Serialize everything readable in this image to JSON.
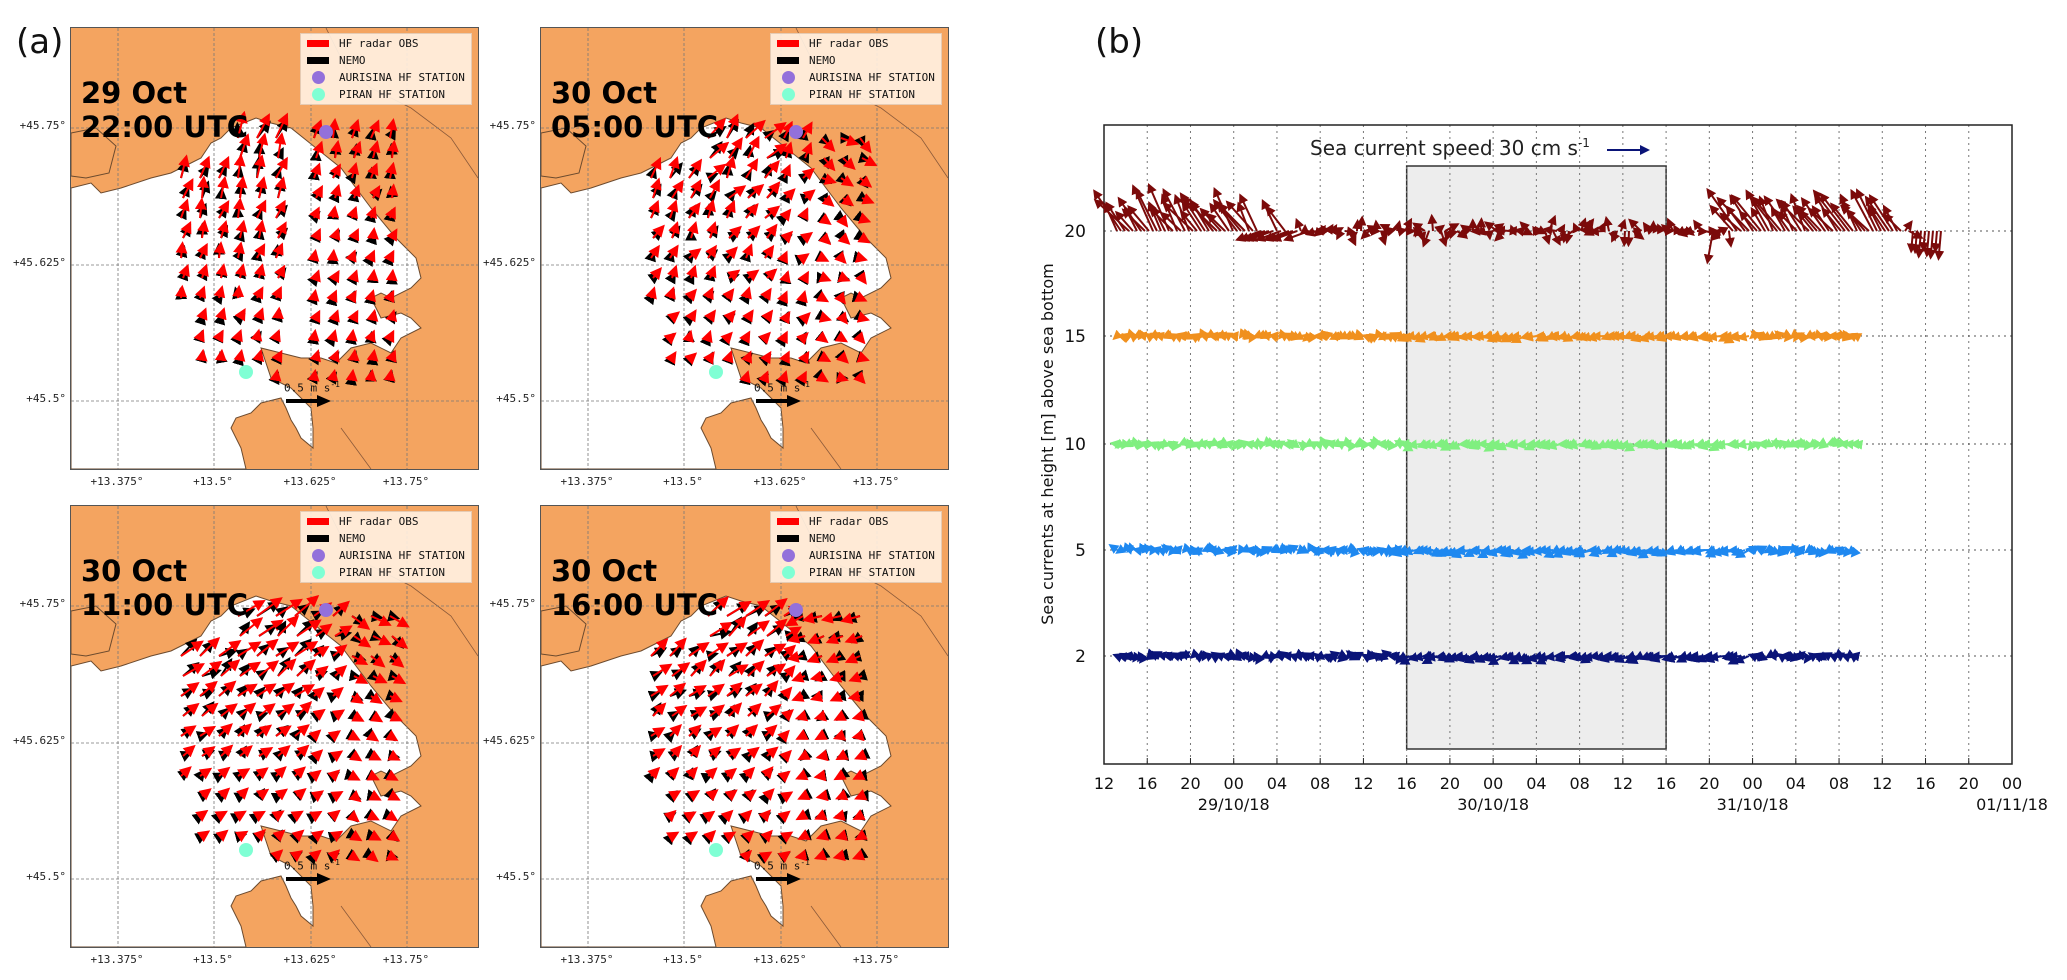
{
  "labels": {
    "a": "(a)",
    "b": "(b)"
  },
  "maps": {
    "legend": [
      {
        "label": "HF radar OBS",
        "kind": "swatch",
        "color": "#ff0000"
      },
      {
        "label": "NEMO",
        "kind": "swatch",
        "color": "#000000"
      },
      {
        "label": "AURISINA HF STATION",
        "kind": "dot",
        "color": "#9370db"
      },
      {
        "label": "PIRAN HF STATION",
        "kind": "dot",
        "color": "#7fffd4"
      }
    ],
    "scale_label": "0.5 m s",
    "scale_sup": "-1",
    "lat_ticks": [
      "+45.75°",
      "+45.625°",
      "+45.5°"
    ],
    "lon_ticks": [
      "+13.375°",
      "+13.5°",
      "+13.625°",
      "+13.75°"
    ],
    "land_color": "#f4a460",
    "sea_color": "#ffffff",
    "panels": [
      {
        "id": "tl",
        "title": "29 Oct\n22:00 UTC",
        "pattern": "ne-strong"
      },
      {
        "id": "tr",
        "title": "30 Oct\n05:00 UTC",
        "pattern": "ne-mixed"
      },
      {
        "id": "bl",
        "title": "30 Oct\n11:00 UTC",
        "pattern": "ne-red"
      },
      {
        "id": "br",
        "title": "30 Oct\n16:00 UTC",
        "pattern": "ne-black"
      }
    ]
  },
  "chart_data": {
    "type": "vector-timeseries (stick plot)",
    "title": "",
    "annotation": "Sea current speed 30 cm s-1 (reference arrow)",
    "ylabel": "Sea currents at height [m] above sea bottom",
    "xlabel": "",
    "y_levels": [
      20,
      15,
      10,
      5,
      2
    ],
    "y_tick_labels": [
      "20",
      "15",
      "10",
      "5",
      "2"
    ],
    "x_range": [
      "28/10/18 12:00",
      "01/11/18 00:00"
    ],
    "x_tick_labels": [
      "12",
      "16",
      "20",
      "00",
      "04",
      "08",
      "12",
      "16",
      "20",
      "00",
      "04",
      "08",
      "12",
      "16",
      "20",
      "00",
      "04",
      "08",
      "12",
      "16",
      "20",
      "00"
    ],
    "date_labels": [
      {
        "tick_index": 3,
        "label": "29/10/18"
      },
      {
        "tick_index": 9,
        "label": "30/10/18"
      },
      {
        "tick_index": 15,
        "label": "31/10/18"
      },
      {
        "tick_index": 21,
        "label": "01/11/18"
      }
    ],
    "highlight_window": {
      "start_tick_index": 7,
      "end_tick_index": 13,
      "start": "29/10/18 16:00",
      "end": "30/10/18 16:00",
      "color": "#ededed"
    },
    "grid": true,
    "series": [
      {
        "name": "20 m",
        "level": 20,
        "color": "#7b0a0a",
        "data_end_tick_index": 19.4,
        "max_speed_cm_s": 30,
        "dominant_direction": "NNW (strong before and after window)"
      },
      {
        "name": "15 m",
        "level": 15,
        "color": "#f0901e",
        "data_end_tick_index": 17.5,
        "max_speed_cm_s": 8,
        "dominant_direction": "SW"
      },
      {
        "name": "10 m",
        "level": 10,
        "color": "#80ef80",
        "data_end_tick_index": 17.5,
        "max_speed_cm_s": 8,
        "dominant_direction": "SW"
      },
      {
        "name": "5 m",
        "level": 5,
        "color": "#1e88f0",
        "data_end_tick_index": 17.5,
        "max_speed_cm_s": 9,
        "dominant_direction": "SW"
      },
      {
        "name": "2 m",
        "level": 2,
        "color": "#0a1478",
        "data_end_tick_index": 17.5,
        "max_speed_cm_s": 9,
        "dominant_direction": "SW"
      }
    ]
  }
}
